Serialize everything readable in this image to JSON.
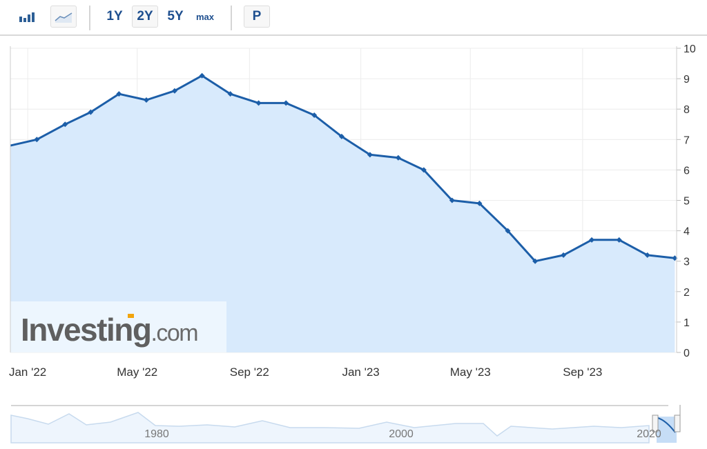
{
  "toolbar": {
    "chart_types": [
      {
        "icon": "bar-chart-icon",
        "selected": false
      },
      {
        "icon": "area-chart-icon",
        "selected": true
      }
    ],
    "ranges": [
      {
        "label": "1Y",
        "selected": false
      },
      {
        "label": "2Y",
        "selected": true
      },
      {
        "label": "5Y",
        "selected": false
      },
      {
        "label": "max",
        "selected": false
      }
    ],
    "p_label": "P"
  },
  "watermark": "Investing.com",
  "colors": {
    "line": "#1c5ea8",
    "fill": "#d8eafc",
    "grid": "#ececec",
    "navigator_line": "#c7daee"
  },
  "chart_data": {
    "type": "area",
    "x": [
      "2021-12-11",
      "2022-01-11",
      "2022-02-11",
      "2022-03-11",
      "2022-04-11",
      "2022-05-11",
      "2022-06-11",
      "2022-07-11",
      "2022-08-11",
      "2022-09-11",
      "2022-10-11",
      "2022-11-11",
      "2022-12-11",
      "2023-01-11",
      "2023-02-11",
      "2023-03-11",
      "2023-04-11",
      "2023-05-11",
      "2023-06-11",
      "2023-07-11",
      "2023-08-11",
      "2023-09-11",
      "2023-10-11",
      "2023-11-11",
      "2023-12-11"
    ],
    "values": [
      6.8,
      7.0,
      7.5,
      7.9,
      8.5,
      8.3,
      8.6,
      9.1,
      8.5,
      8.2,
      8.2,
      7.8,
      7.1,
      6.5,
      6.4,
      6.0,
      5.0,
      4.9,
      4.0,
      3.0,
      3.2,
      3.7,
      3.7,
      3.2,
      3.1
    ],
    "xlim": [
      "2021-12-13",
      "2023-12-13"
    ],
    "ylim": [
      0,
      10
    ],
    "y_ticks": [
      "0",
      "1",
      "2",
      "3",
      "4",
      "5",
      "6",
      "7",
      "8",
      "9",
      "10"
    ],
    "y_axis_position": "right",
    "x_ticks": [
      {
        "date": "2022-01-01",
        "label": "Jan '22"
      },
      {
        "date": "2022-05-01",
        "label": "May '22"
      },
      {
        "date": "2022-09-01",
        "label": "Sep '22"
      },
      {
        "date": "2023-01-01",
        "label": "Jan '23"
      },
      {
        "date": "2023-05-01",
        "label": "May '23"
      },
      {
        "date": "2023-09-01",
        "label": "Sep '23"
      }
    ],
    "grid": true,
    "navigator": {
      "labels": [
        "1980",
        "2000",
        "2020"
      ]
    }
  }
}
